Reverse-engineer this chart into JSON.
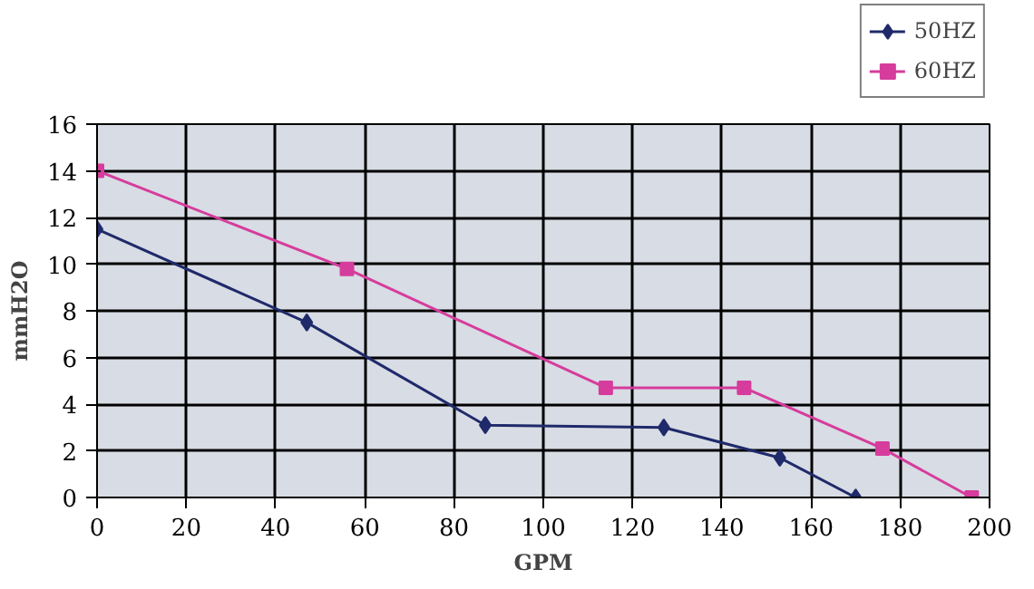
{
  "chart_data": {
    "type": "line",
    "xlabel": "GPM",
    "ylabel": "mmH2O",
    "xlim": [
      0,
      200
    ],
    "ylim": [
      0,
      16
    ],
    "xticks": [
      0,
      20,
      40,
      60,
      80,
      100,
      120,
      140,
      160,
      180,
      200
    ],
    "yticks": [
      0,
      2,
      4,
      6,
      8,
      10,
      12,
      14,
      16
    ],
    "grid": true,
    "legend": "top right",
    "series": [
      {
        "name": "50HZ",
        "color": "#1f2a6b",
        "marker": "diamond",
        "x": [
          0,
          47,
          87,
          127,
          153,
          170
        ],
        "values": [
          11.5,
          7.5,
          3.1,
          3.0,
          1.7,
          0
        ]
      },
      {
        "name": "60HZ",
        "color": "#d63c9c",
        "marker": "square",
        "x": [
          0,
          56,
          114,
          145,
          176,
          196
        ],
        "values": [
          14,
          9.8,
          4.7,
          4.7,
          2.1,
          0
        ]
      }
    ]
  }
}
